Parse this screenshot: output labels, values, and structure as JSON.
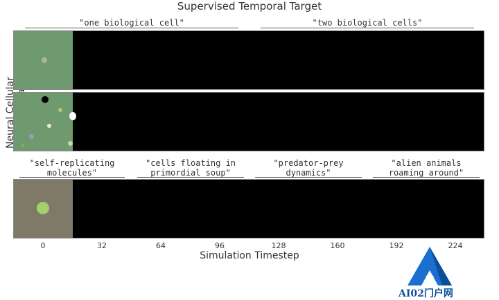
{
  "title": "Supervised Temporal Target",
  "y_axis_label": "Neural Cellular Automata",
  "x_axis_label": "Simulation Timestep",
  "rows": [
    {
      "captions": [
        "\"one biological cell\"",
        "\"two biological cells\""
      ]
    },
    {
      "captions": []
    },
    {
      "captions": [
        "\"self-replicating molecules\"",
        "\"cells floating in primordial soup\"",
        "\"predator-prey dynamics\"",
        "\"alien animals roaming around\""
      ]
    }
  ],
  "captions_lines": {
    "c1": "\"self-replicating",
    "c1b": "molecules\"",
    "c2": "\"cells floating in",
    "c2b": "primordial soup\"",
    "c3": "\"predator-prey",
    "c3b": "dynamics\"",
    "c4": "\"alien animals",
    "c4b": "roaming around\""
  },
  "ticks": [
    "0",
    "32",
    "64",
    "96",
    "128",
    "160",
    "192",
    "224"
  ],
  "colors": {
    "frame_green": "#6f9a6f",
    "frame_tan": "#7f7a68",
    "strip_black": "#000000",
    "logo_blue": "#1a6fd0"
  },
  "logo_text": "AI02门户网"
}
